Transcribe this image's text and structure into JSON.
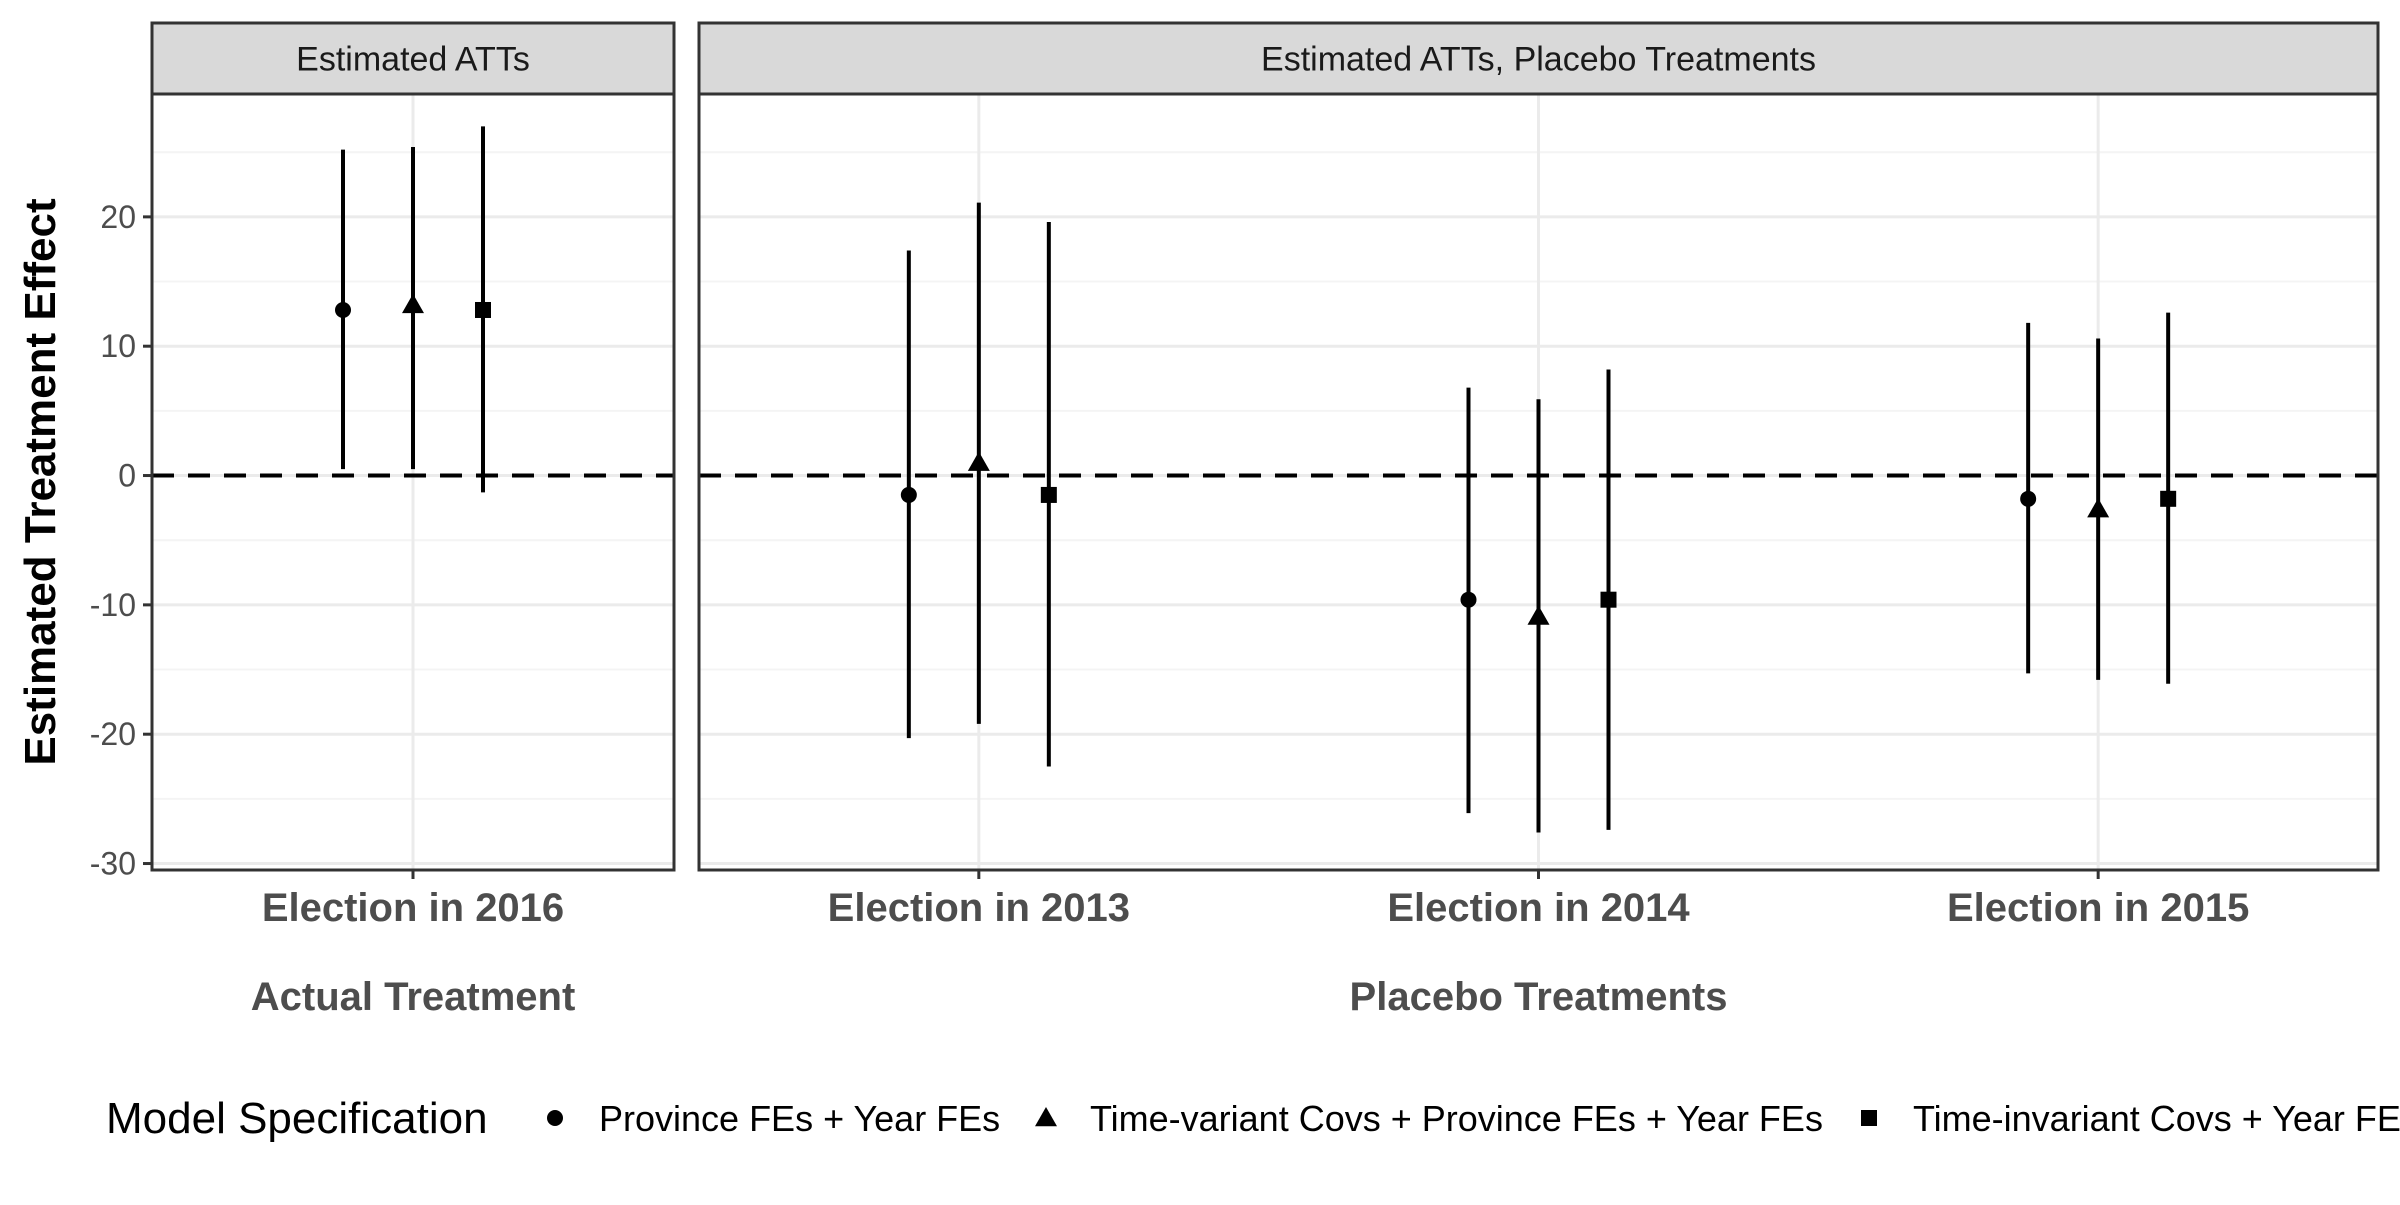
{
  "chart_data": {
    "type": "scatter",
    "subtype": "point-with-errorbars, faceted",
    "ylabel": "Estimated Treatment Effect",
    "ylim": [
      -30.5,
      29.5
    ],
    "yticks": [
      20,
      10,
      0,
      -10,
      -20,
      -30
    ],
    "ytick_labels": [
      "20",
      "10",
      "0",
      "-10",
      "-20",
      "-30"
    ],
    "reference_line": {
      "y": 0,
      "style": "dashed"
    },
    "grid": true,
    "legend": {
      "title": "Model Specification",
      "position": "bottom",
      "items": [
        {
          "label": "Province FEs + Year FEs",
          "shape": "circle"
        },
        {
          "label": "Time-variant Covs + Province FEs + Year FEs",
          "shape": "triangle"
        },
        {
          "label": "Time-invariant Covs + Year FEs",
          "shape": "square"
        }
      ]
    },
    "panels": [
      {
        "strip": "Estimated ATTs",
        "xlabel": "Actual Treatment",
        "categories": [
          "Election in 2016"
        ],
        "points": [
          {
            "category": "Election in 2016",
            "spec": 0,
            "estimate": 12.8,
            "ci": [
              0.5,
              25.2
            ]
          },
          {
            "category": "Election in 2016",
            "spec": 1,
            "estimate": 13.2,
            "ci": [
              0.5,
              25.4
            ]
          },
          {
            "category": "Election in 2016",
            "spec": 2,
            "estimate": 12.8,
            "ci": [
              -1.3,
              27.0
            ]
          }
        ]
      },
      {
        "strip": "Estimated ATTs, Placebo Treatments",
        "xlabel": "Placebo Treatments",
        "categories": [
          "Election in 2013",
          "Election in 2014",
          "Election in 2015"
        ],
        "points": [
          {
            "category": "Election in 2013",
            "spec": 0,
            "estimate": -1.5,
            "ci": [
              -20.3,
              17.4
            ]
          },
          {
            "category": "Election in 2013",
            "spec": 1,
            "estimate": 1.0,
            "ci": [
              -19.2,
              21.1
            ]
          },
          {
            "category": "Election in 2013",
            "spec": 2,
            "estimate": -1.5,
            "ci": [
              -22.5,
              19.6
            ]
          },
          {
            "category": "Election in 2014",
            "spec": 0,
            "estimate": -9.6,
            "ci": [
              -26.1,
              6.8
            ]
          },
          {
            "category": "Election in 2014",
            "spec": 1,
            "estimate": -10.9,
            "ci": [
              -27.6,
              5.9
            ]
          },
          {
            "category": "Election in 2014",
            "spec": 2,
            "estimate": -9.6,
            "ci": [
              -27.4,
              8.2
            ]
          },
          {
            "category": "Election in 2015",
            "spec": 0,
            "estimate": -1.8,
            "ci": [
              -15.3,
              11.8
            ]
          },
          {
            "category": "Election in 2015",
            "spec": 1,
            "estimate": -2.6,
            "ci": [
              -15.8,
              10.6
            ]
          },
          {
            "category": "Election in 2015",
            "spec": 2,
            "estimate": -1.8,
            "ci": [
              -16.1,
              12.6
            ]
          }
        ]
      }
    ]
  },
  "colors": {
    "strip_bg": "#d9d9d9",
    "panel_border": "#333333",
    "grid_major": "#ebebeb",
    "grid_minor": "#f4f4f4",
    "marks": "#000000"
  }
}
